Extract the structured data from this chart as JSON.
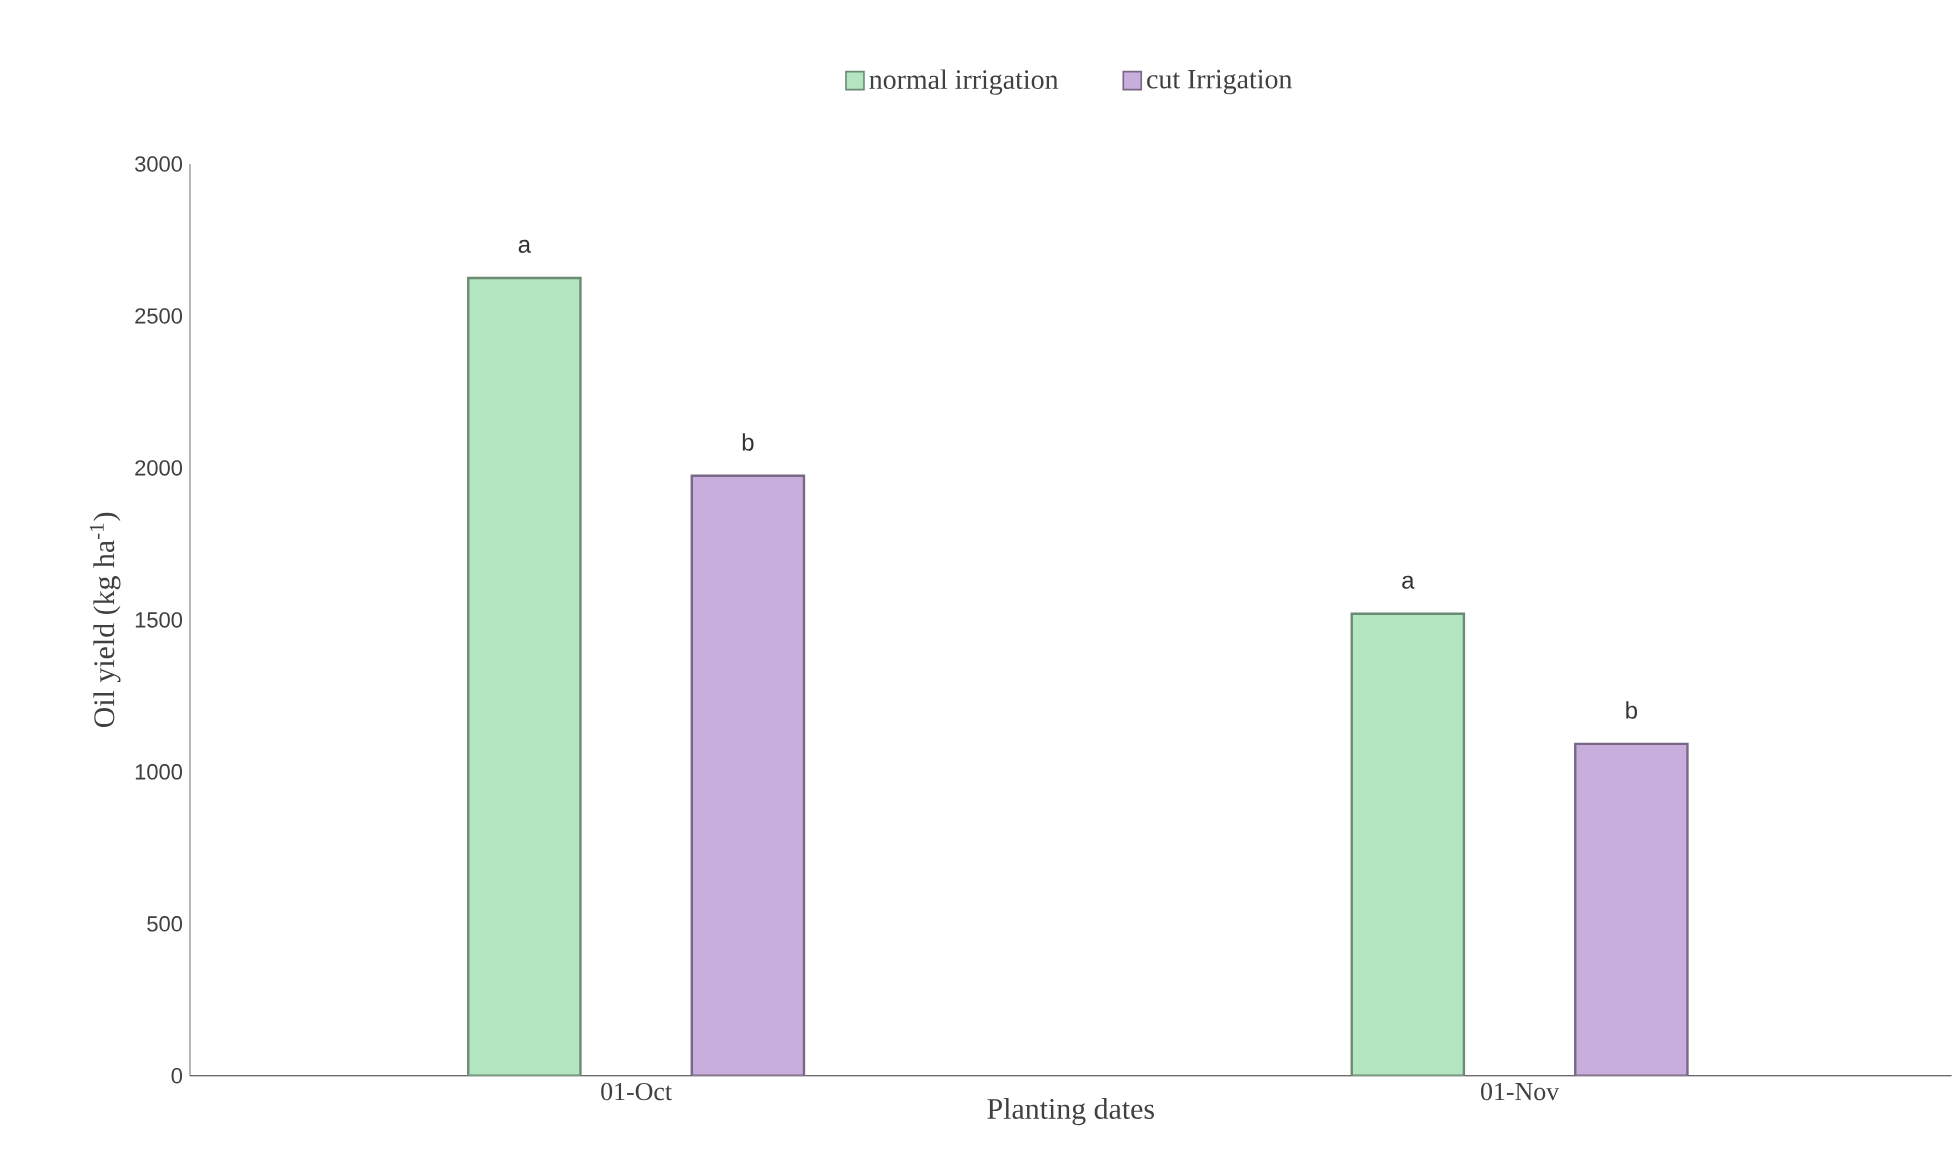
{
  "chart_data": {
    "type": "bar",
    "xlabel": "Planting dates",
    "ylabel": "Oil yield (kg ha$^{-1}$)",
    "categories": [
      "01-Oct",
      "01-Nov"
    ],
    "series": [
      {
        "name": "normal irrigation",
        "color": "#b3e6c0",
        "values": [
          2625,
          1520
        ]
      },
      {
        "name": "cut Irrigation",
        "color": "#c8aedd",
        "values": [
          1974,
          1092
        ]
      }
    ],
    "ylim": [
      0,
      3000
    ],
    "yticks": [
      0,
      500,
      1000,
      1500,
      2000,
      2500,
      3000
    ],
    "grid": false,
    "legend": "top",
    "annotations": [
      "a",
      "b",
      "a",
      "b"
    ]
  }
}
